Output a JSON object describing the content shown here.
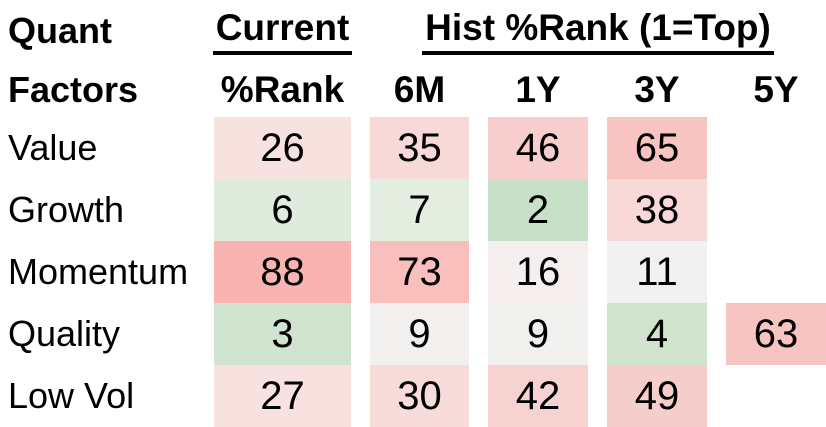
{
  "title": {
    "line1": "Quant",
    "line2": "Factors"
  },
  "header": {
    "current_group_label": "Current",
    "current_sub_label": "%Rank",
    "hist_group_label": "Hist %Rank (1=Top)",
    "periods": [
      "6M",
      "1Y",
      "3Y",
      "5Y"
    ]
  },
  "colors": {
    "strong_red": "#f9b4b2",
    "strong_green": "#c7e0c7",
    "neutral": "#f1f1f0",
    "text": "#000000",
    "background": "#ffffff"
  },
  "rows": [
    {
      "label": "Value",
      "cells": [
        {
          "value": "26",
          "bg": "#f8e2e0"
        },
        {
          "value": "35",
          "bg": "#f7d9d8"
        },
        {
          "value": "46",
          "bg": "#f7cecd"
        },
        {
          "value": "65",
          "bg": "#f7c4c2"
        },
        null
      ]
    },
    {
      "label": "Growth",
      "cells": [
        {
          "value": "6",
          "bg": "#dfebdc"
        },
        {
          "value": "7",
          "bg": "#e3eee1"
        },
        {
          "value": "2",
          "bg": "#c7e0c7"
        },
        {
          "value": "38",
          "bg": "#f8d9d7"
        },
        null
      ]
    },
    {
      "label": "Momentum",
      "cells": [
        {
          "value": "88",
          "bg": "#f9b4b2"
        },
        {
          "value": "73",
          "bg": "#f9bfbd"
        },
        {
          "value": "16",
          "bg": "#f4efee"
        },
        {
          "value": "11",
          "bg": "#f0f1f0"
        },
        null
      ]
    },
    {
      "label": "Quality",
      "cells": [
        {
          "value": "3",
          "bg": "#d0e4cf"
        },
        {
          "value": "9",
          "bg": "#f1f0ef"
        },
        {
          "value": "9",
          "bg": "#f0f0ef"
        },
        {
          "value": "4",
          "bg": "#cfe3cd"
        },
        {
          "value": "63",
          "bg": "#f7c4c2"
        }
      ]
    },
    {
      "label": "Low Vol",
      "cells": [
        {
          "value": "27",
          "bg": "#f7e2e0"
        },
        {
          "value": "30",
          "bg": "#f7dcda"
        },
        {
          "value": "42",
          "bg": "#f6d3d1"
        },
        {
          "value": "49",
          "bg": "#f5cecc"
        },
        null
      ]
    }
  ],
  "chart_data": {
    "type": "heatmap",
    "title": "Quant Factors %Rank",
    "row_labels": [
      "Value",
      "Growth",
      "Momentum",
      "Quality",
      "Low Vol"
    ],
    "columns": [
      "%Rank",
      "6M",
      "1Y",
      "3Y",
      "5Y"
    ],
    "column_groups": [
      {
        "label": "Current",
        "columns": [
          "%Rank"
        ]
      },
      {
        "label": "Hist %Rank (1=Top)",
        "columns": [
          "6M",
          "1Y",
          "3Y",
          "5Y"
        ]
      }
    ],
    "values": [
      [
        26,
        35,
        46,
        65,
        null
      ],
      [
        6,
        7,
        2,
        38,
        null
      ],
      [
        88,
        73,
        16,
        11,
        null
      ],
      [
        3,
        9,
        9,
        4,
        63
      ],
      [
        27,
        30,
        42,
        49,
        null
      ]
    ],
    "scale_note": "1=Top; low ranks shaded green, high ranks shaded red, ~neutral near white",
    "legend_position": "none",
    "grid": false
  }
}
